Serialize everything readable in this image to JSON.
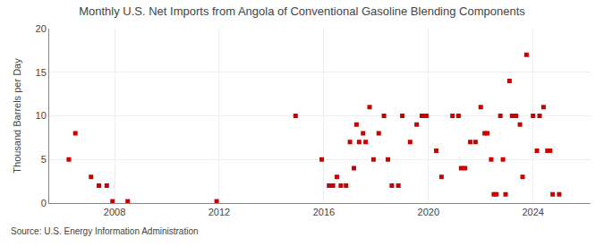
{
  "chart_data": {
    "type": "scatter",
    "title": "Monthly U.S. Net Imports from Angola of Conventional Gasoline Blending Components",
    "y_label": "Thousand Barrels per Day",
    "annotations": [
      "Source: U.S. Energy Information Administration"
    ],
    "x": [
      2006.25,
      2006.5,
      2007.1,
      2007.4,
      2007.7,
      2007.92,
      2008.5,
      2011.9,
      2014.92,
      2015.92,
      2016.2,
      2016.35,
      2016.5,
      2016.65,
      2016.85,
      2017.0,
      2017.15,
      2017.25,
      2017.35,
      2017.5,
      2017.6,
      2017.75,
      2017.9,
      2018.1,
      2018.3,
      2018.45,
      2018.6,
      2018.85,
      2019.0,
      2019.3,
      2019.55,
      2019.75,
      2019.92,
      2020.3,
      2020.5,
      2020.92,
      2021.15,
      2021.25,
      2021.4,
      2021.6,
      2021.8,
      2022.0,
      2022.15,
      2022.25,
      2022.4,
      2022.5,
      2022.6,
      2022.75,
      2022.85,
      2022.95,
      2023.1,
      2023.2,
      2023.35,
      2023.5,
      2023.6,
      2023.75,
      2024.0,
      2024.15,
      2024.25,
      2024.4,
      2024.55,
      2024.65,
      2024.75,
      2025.0
    ],
    "values": [
      5.0,
      8.0,
      3.0,
      2.0,
      2.0,
      0.2,
      0.2,
      0.2,
      10.0,
      5.0,
      2.0,
      2.0,
      3.0,
      2.0,
      2.0,
      7.0,
      4.0,
      9.0,
      7.0,
      8.0,
      7.0,
      11.0,
      5.0,
      8.0,
      10.0,
      5.0,
      2.0,
      2.0,
      10.0,
      7.0,
      9.0,
      10.0,
      10.0,
      6.0,
      3.0,
      10.0,
      10.0,
      4.0,
      4.0,
      7.0,
      7.0,
      11.0,
      8.0,
      8.0,
      5.0,
      1.0,
      1.0,
      10.0,
      5.0,
      1.0,
      14.0,
      10.0,
      10.0,
      9.0,
      3.0,
      17.0,
      10.0,
      6.0,
      10.0,
      11.0,
      6.0,
      6.0,
      1.0,
      1.0
    ],
    "color": "#cc0000",
    "marker": "square",
    "xlim": [
      2005.5,
      2026.2
    ],
    "xticks": [
      2008,
      2012,
      2016,
      2020,
      2024
    ],
    "ylim": [
      0,
      20
    ],
    "yticks": [
      0,
      5,
      10,
      15,
      20
    ],
    "grid": true
  }
}
